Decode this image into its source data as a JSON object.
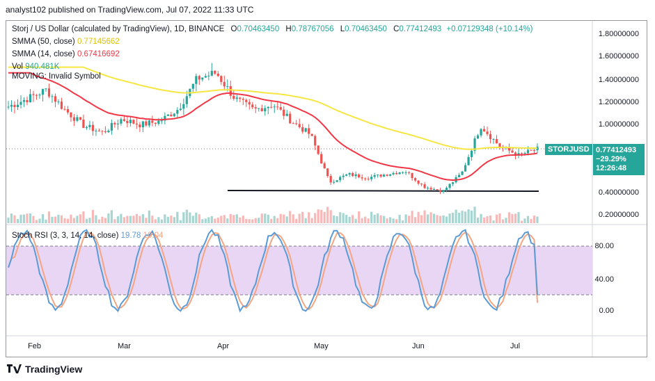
{
  "publisher_line": "analyst102 published on TradingView.com, Jul 07, 2022 11:33 UTC",
  "legend": {
    "symbol_line": "Storj / US Dollar (calculated by TradingView), 1D, BINANCE",
    "ohlc": {
      "o_label": "O",
      "o": "0.70463450",
      "h_label": "H",
      "h": "0.78767056",
      "l_label": "L",
      "l": "0.70463450",
      "c_label": "C",
      "c": "0.77412493",
      "change": "+0.07129348 (+10.14%)"
    },
    "sma50_label": "SMMA (50, close)",
    "sma50_value": "0.77145662",
    "sma14_label": "SMMA (14, close)",
    "sma14_value": "0.67416692",
    "vol_label": "Vol",
    "vol_value": "940.481K",
    "moving_label": "MOVING: Invalid Symbol"
  },
  "price_tag": {
    "symbol": "STORJUSD",
    "price": "0.77412493",
    "change": "−29.29%",
    "countdown": "12:26:48"
  },
  "price_axis": [
    "1.80000000",
    "1.60000000",
    "1.40000000",
    "1.20000000",
    "1.00000000",
    "0.40000000",
    "0.20000000"
  ],
  "stoch": {
    "label": "Stoch RSI (3, 3, 14, 14, close)",
    "k_value": "19.78",
    "d_value": "10.04",
    "axis": [
      "80.00",
      "40.00",
      "0.00"
    ]
  },
  "time_axis": [
    "Feb",
    "Mar",
    "Apr",
    "May",
    "Jun",
    "Jul"
  ],
  "brand": "TradingView",
  "colors": {
    "up": "#26a69a",
    "down": "#ef5350",
    "sma50": "#f5e642",
    "sma14": "#f23645",
    "k_line": "#5b9bd5",
    "d_line": "#f4a582",
    "rsi_band": "#e1c8f0"
  },
  "chart_data": [
    {
      "type": "candlestick",
      "symbol": "STORJUSD",
      "interval": "1D",
      "x_labels": [
        "Feb",
        "Mar",
        "Apr",
        "May",
        "Jun",
        "Jul"
      ],
      "close_path": [
        [
          "Jan 21",
          1.15
        ],
        [
          "Jan 28",
          1.22
        ],
        [
          "Feb 4",
          1.3
        ],
        [
          "Feb 11",
          1.12
        ],
        [
          "Feb 18",
          0.98
        ],
        [
          "Feb 25",
          0.92
        ],
        [
          "Mar 4",
          1.04
        ],
        [
          "Mar 11",
          0.99
        ],
        [
          "Mar 18",
          1.02
        ],
        [
          "Mar 25",
          1.13
        ],
        [
          "Mar 29",
          1.4
        ],
        [
          "Apr 1",
          1.45
        ],
        [
          "Apr 5",
          1.22
        ],
        [
          "Apr 12",
          1.12
        ],
        [
          "Apr 19",
          1.17
        ],
        [
          "Apr 26",
          1.02
        ],
        [
          "May 3",
          0.9
        ],
        [
          "May 10",
          0.48
        ],
        [
          "May 17",
          0.55
        ],
        [
          "May 24",
          0.52
        ],
        [
          "May 31",
          0.55
        ],
        [
          "Jun 7",
          0.58
        ],
        [
          "Jun 14",
          0.44
        ],
        [
          "Jun 18",
          0.4
        ],
        [
          "Jun 22",
          0.56
        ],
        [
          "Jun 25",
          0.98
        ],
        [
          "Jun 29",
          0.8
        ],
        [
          "Jul 3",
          0.72
        ],
        [
          "Jul 7",
          0.774
        ]
      ],
      "ylim": [
        0.15,
        1.85
      ],
      "support_line": 0.4
    },
    {
      "type": "line",
      "name": "Stoch RSI (3, 3, 14, 14, close)",
      "ylim": [
        -5,
        105
      ],
      "bands": [
        20,
        80
      ],
      "last_k": 19.78,
      "last_d": 10.04
    }
  ]
}
